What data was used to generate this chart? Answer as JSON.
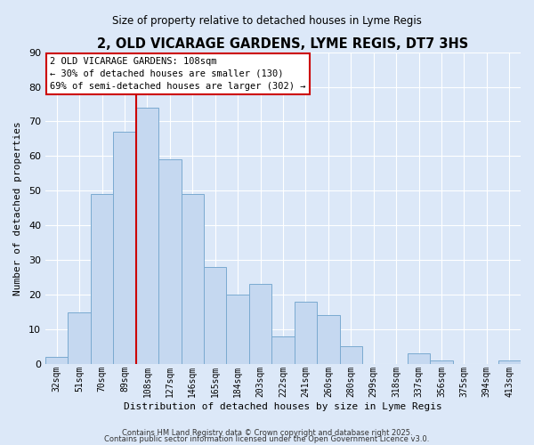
{
  "title": "2, OLD VICARAGE GARDENS, LYME REGIS, DT7 3HS",
  "subtitle": "Size of property relative to detached houses in Lyme Regis",
  "xlabel": "Distribution of detached houses by size in Lyme Regis",
  "ylabel": "Number of detached properties",
  "bin_labels": [
    "32sqm",
    "51sqm",
    "70sqm",
    "89sqm",
    "108sqm",
    "127sqm",
    "146sqm",
    "165sqm",
    "184sqm",
    "203sqm",
    "222sqm",
    "241sqm",
    "260sqm",
    "280sqm",
    "299sqm",
    "318sqm",
    "337sqm",
    "356sqm",
    "375sqm",
    "394sqm",
    "413sqm"
  ],
  "bar_values": [
    2,
    15,
    49,
    67,
    74,
    59,
    49,
    28,
    20,
    23,
    8,
    18,
    14,
    5,
    0,
    0,
    3,
    1,
    0,
    0,
    1
  ],
  "bar_color": "#c5d8f0",
  "bar_edge_color": "#7aaad0",
  "vline_x_idx": 4,
  "vline_color": "#cc0000",
  "ylim": [
    0,
    90
  ],
  "yticks": [
    0,
    10,
    20,
    30,
    40,
    50,
    60,
    70,
    80,
    90
  ],
  "annotation_text": "2 OLD VICARAGE GARDENS: 108sqm\n← 30% of detached houses are smaller (130)\n69% of semi-detached houses are larger (302) →",
  "annotation_box_facecolor": "#ffffff",
  "annotation_box_edgecolor": "#cc0000",
  "footer_line1": "Contains HM Land Registry data © Crown copyright and database right 2025.",
  "footer_line2": "Contains public sector information licensed under the Open Government Licence v3.0.",
  "bg_color": "#dce8f8",
  "grid_color": "#ffffff"
}
